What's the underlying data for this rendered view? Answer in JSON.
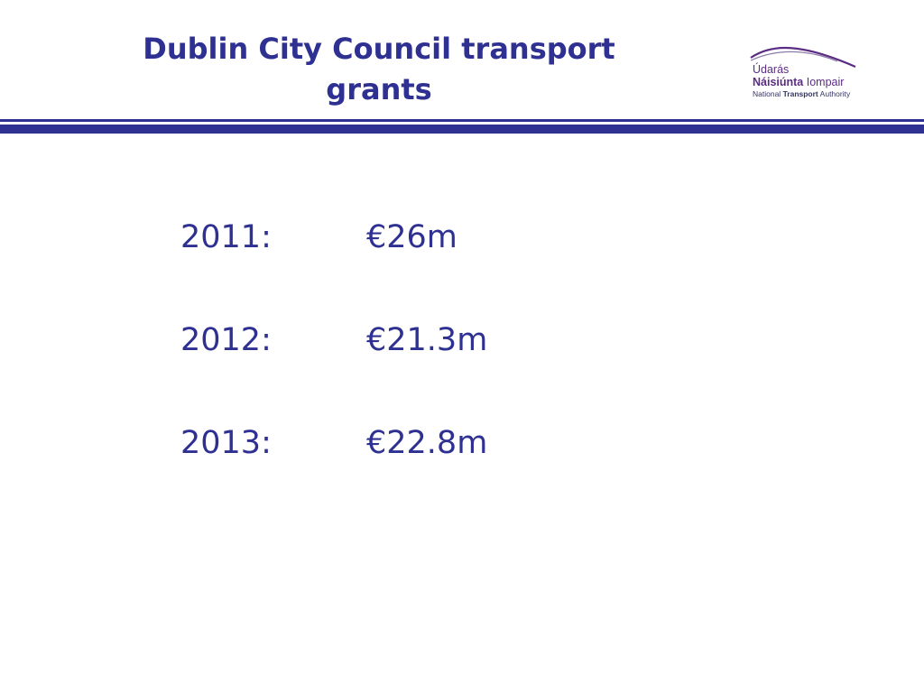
{
  "slide": {
    "title_lines": [
      "Dublin City Council transport",
      "grants"
    ],
    "logo": {
      "line1": "Údarás",
      "line2_bold": "Náisiúnta",
      "line2_regular": "Iompair",
      "line3_before": "National",
      "line3_bold": "Transport",
      "line3_after": "Authority"
    },
    "grants": [
      {
        "year": "2011:",
        "amount": "€26m"
      },
      {
        "year": "2012:",
        "amount": "€21.3m"
      },
      {
        "year": "2013:",
        "amount": "€22.8m"
      }
    ]
  },
  "colors": {
    "title": "#2e3192",
    "body_text": "#2e3192",
    "divider": "#2e3192",
    "logo": "#5b2c83"
  }
}
